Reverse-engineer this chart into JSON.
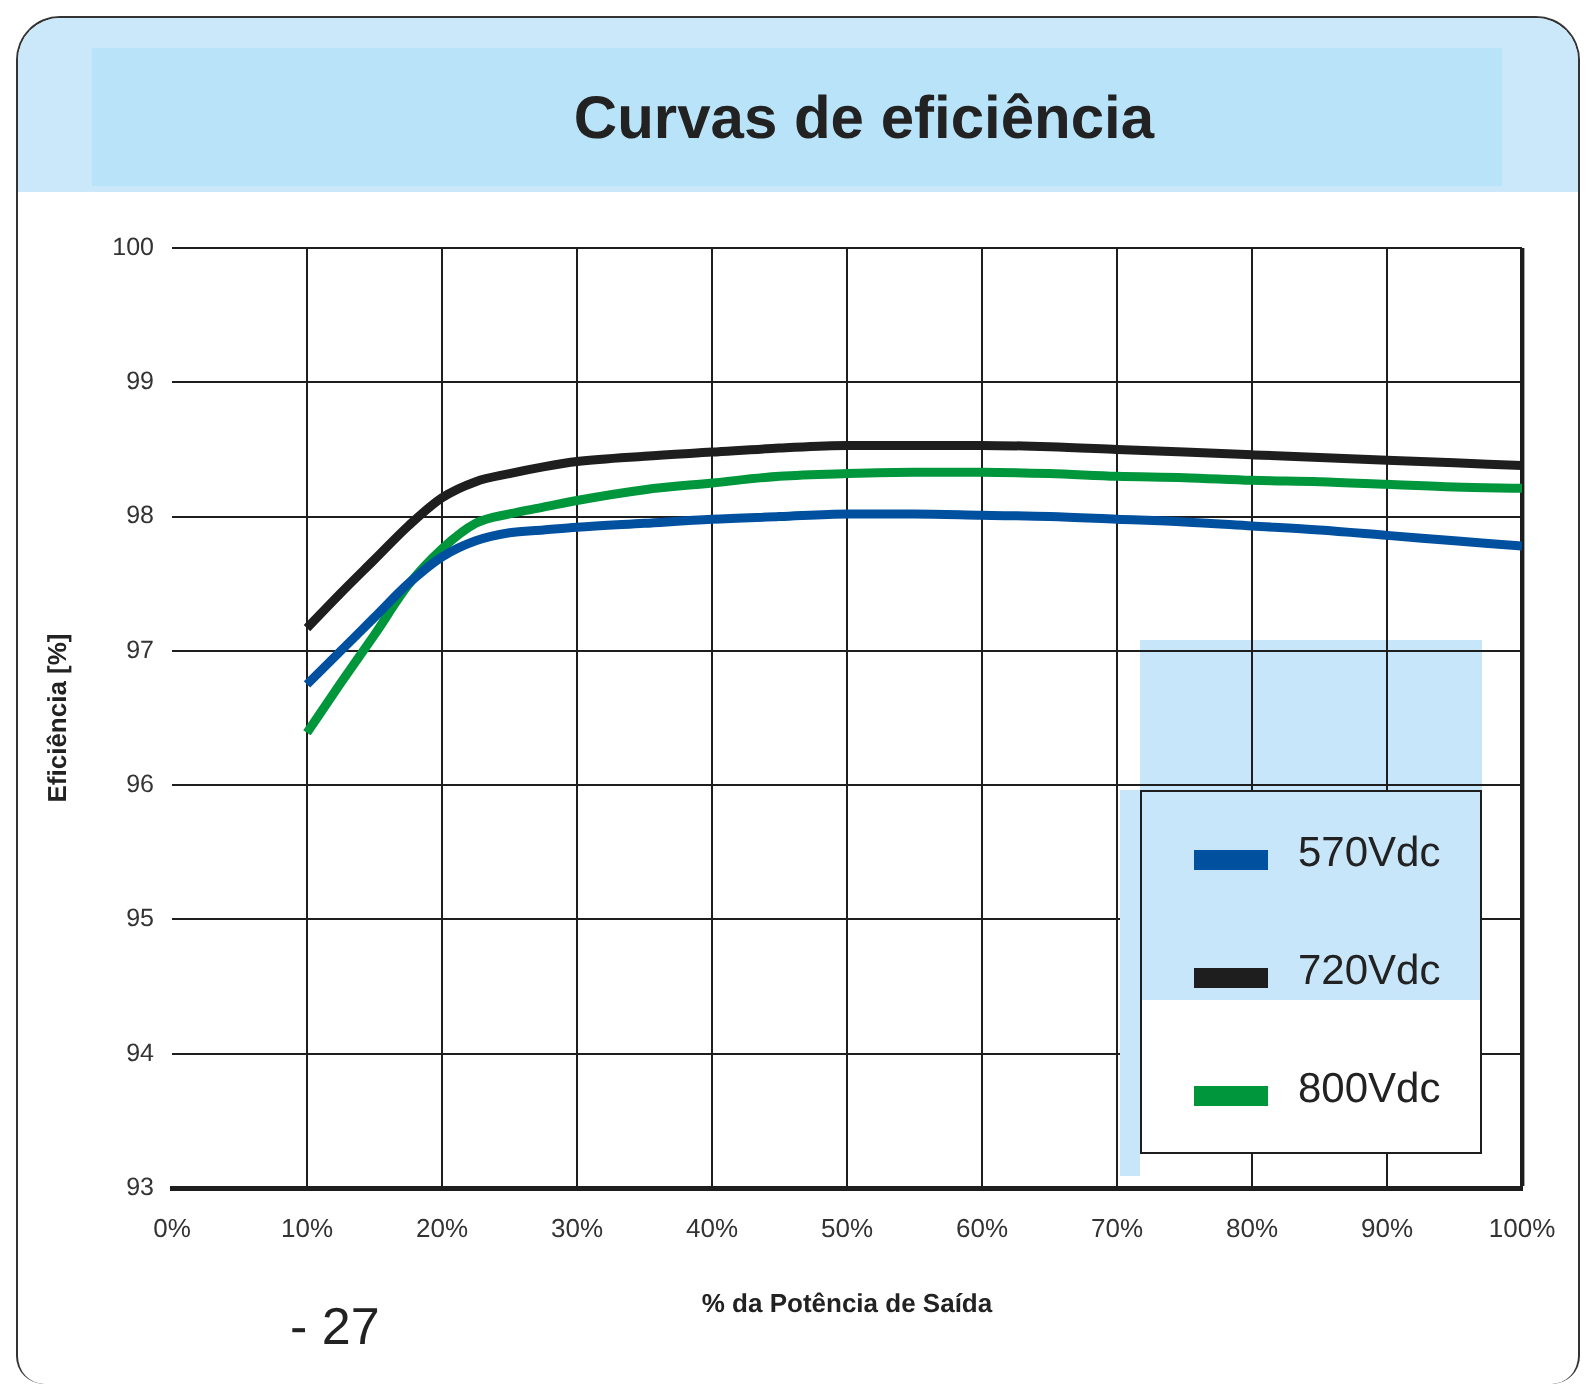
{
  "chart_data": {
    "type": "line",
    "title": "Curvas de eficiência",
    "xlabel": "% da Potência de Saída",
    "ylabel": "Eficiência [%]",
    "x": [
      10,
      12.5,
      15,
      17.5,
      20,
      22.5,
      25,
      27.5,
      30,
      35,
      40,
      45,
      50,
      55,
      60,
      65,
      70,
      75,
      80,
      85,
      90,
      95,
      100
    ],
    "series": [
      {
        "name": "570Vdc",
        "color": "#0050a0",
        "values": [
          96.75,
          97.0,
          97.25,
          97.5,
          97.7,
          97.82,
          97.88,
          97.9,
          97.92,
          97.95,
          97.98,
          98.0,
          98.02,
          98.02,
          98.01,
          98.0,
          97.98,
          97.96,
          97.93,
          97.9,
          97.86,
          97.82,
          97.78
        ]
      },
      {
        "name": "720Vdc",
        "color": "#1e1e1e",
        "values": [
          97.17,
          97.43,
          97.68,
          97.93,
          98.14,
          98.26,
          98.32,
          98.37,
          98.41,
          98.45,
          98.48,
          98.51,
          98.53,
          98.53,
          98.53,
          98.52,
          98.5,
          98.48,
          98.46,
          98.44,
          98.42,
          98.4,
          98.38
        ]
      },
      {
        "name": "800Vdc",
        "color": "#00963c",
        "values": [
          96.39,
          96.76,
          97.12,
          97.49,
          97.76,
          97.95,
          98.02,
          98.07,
          98.12,
          98.2,
          98.25,
          98.3,
          98.32,
          98.33,
          98.33,
          98.32,
          98.3,
          98.29,
          98.27,
          98.26,
          98.24,
          98.22,
          98.21
        ]
      }
    ],
    "xlim": [
      0,
      100
    ],
    "xticks": [
      {
        "value": 0,
        "label": "0%"
      },
      {
        "value": 10,
        "label": "10%"
      },
      {
        "value": 20,
        "label": "20%"
      },
      {
        "value": 30,
        "label": "30%"
      },
      {
        "value": 40,
        "label": "40%"
      },
      {
        "value": 50,
        "label": "50%"
      },
      {
        "value": 60,
        "label": "60%"
      },
      {
        "value": 70,
        "label": "70%"
      },
      {
        "value": 80,
        "label": "80%"
      },
      {
        "value": 90,
        "label": "90%"
      },
      {
        "value": 100,
        "label": "100%"
      }
    ],
    "ylim": [
      93,
      100
    ],
    "yticks": [
      93,
      94,
      95,
      96,
      97,
      98,
      99,
      100
    ],
    "grid": true,
    "legend": "bottom right",
    "marker": "none",
    "line_style": "solid",
    "annotations": [
      "- 27"
    ]
  }
}
